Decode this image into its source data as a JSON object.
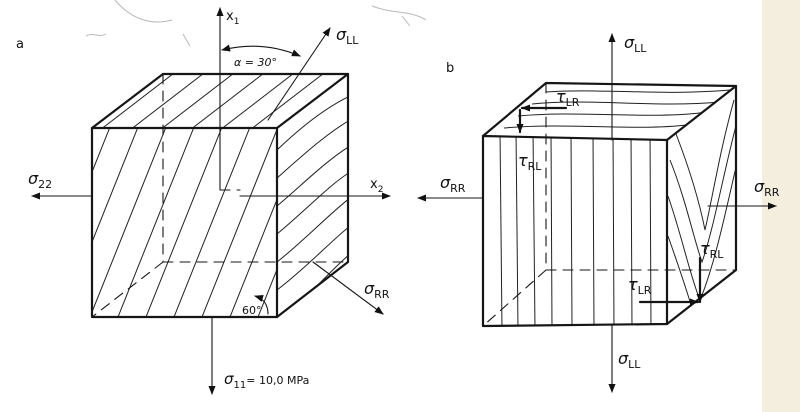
{
  "panel_a": {
    "label": "a",
    "axis_x1": "x",
    "axis_x1_sub": "1",
    "axis_x2": "x",
    "axis_x2_sub": "2",
    "angle_label": "α = 30°",
    "bottom_angle": "60°",
    "sigma_ll_main": "σ",
    "sigma_ll_sub": "LL",
    "sigma_22_main": "σ",
    "sigma_22_sub": "22",
    "sigma_rr_main": "σ",
    "sigma_rr_sub": "RR",
    "sigma_11_main": "σ",
    "sigma_11_sub": "11",
    "sigma_11_value": "= 10,0 MPa"
  },
  "panel_b": {
    "label": "b",
    "sigma_ll_top_main": "σ",
    "sigma_ll_top_sub": "LL",
    "sigma_rr_left_main": "σ",
    "sigma_rr_left_sub": "RR",
    "sigma_rr_right_main": "σ",
    "sigma_rr_right_sub": "RR",
    "sigma_ll_bottom_main": "σ",
    "sigma_ll_bottom_sub": "LL",
    "tau_lr_top_main": "τ",
    "tau_lr_top_sub": "LR",
    "tau_rl_left_main": "τ",
    "tau_rl_left_sub": "RL",
    "tau_rl_right_main": "τ",
    "tau_rl_right_sub": "RL",
    "tau_lr_bottom_main": "τ",
    "tau_lr_bottom_sub": "LR"
  }
}
